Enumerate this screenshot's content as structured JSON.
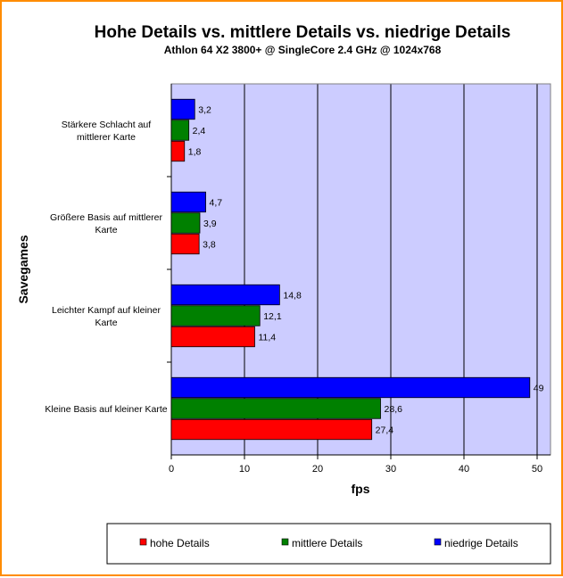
{
  "chart_data": {
    "type": "bar",
    "orientation": "horizontal",
    "title": "Hohe Details vs. mittlere Details vs. niedrige Details",
    "subtitle": "Athlon 64 X2 3800+ @ SingleCore 2.4 GHz @ 1024x768",
    "xlabel": "fps",
    "ylabel": "Savegames",
    "xlim": [
      0,
      52
    ],
    "xticks": [
      0,
      10,
      20,
      30,
      40,
      50
    ],
    "grid": true,
    "legend_position": "bottom",
    "categories": [
      [
        "Stärkere Schlacht auf",
        "mittlerer Karte"
      ],
      [
        "Größere Basis auf mittlerer",
        "Karte"
      ],
      [
        "Leichter Kampf auf kleiner",
        "Karte"
      ],
      [
        "Kleine Basis auf kleiner Karte"
      ]
    ],
    "series": [
      {
        "name": "hohe Details",
        "color": "#ff0000",
        "values": [
          1.8,
          3.8,
          11.4,
          27.4
        ],
        "labels": [
          "1,8",
          "3,8",
          "11,4",
          "27,4"
        ]
      },
      {
        "name": "mittlere Details",
        "color": "#008000",
        "values": [
          2.4,
          3.9,
          12.1,
          28.6
        ],
        "labels": [
          "2,4",
          "3,9",
          "12,1",
          "28,6"
        ]
      },
      {
        "name": "niedrige Details",
        "color": "#0000ff",
        "values": [
          3.2,
          4.7,
          14.8,
          49
        ],
        "labels": [
          "3,2",
          "4,7",
          "14,8",
          "49"
        ]
      }
    ],
    "plot_background": "#ccccff",
    "frame_color": "#ff8c00"
  }
}
